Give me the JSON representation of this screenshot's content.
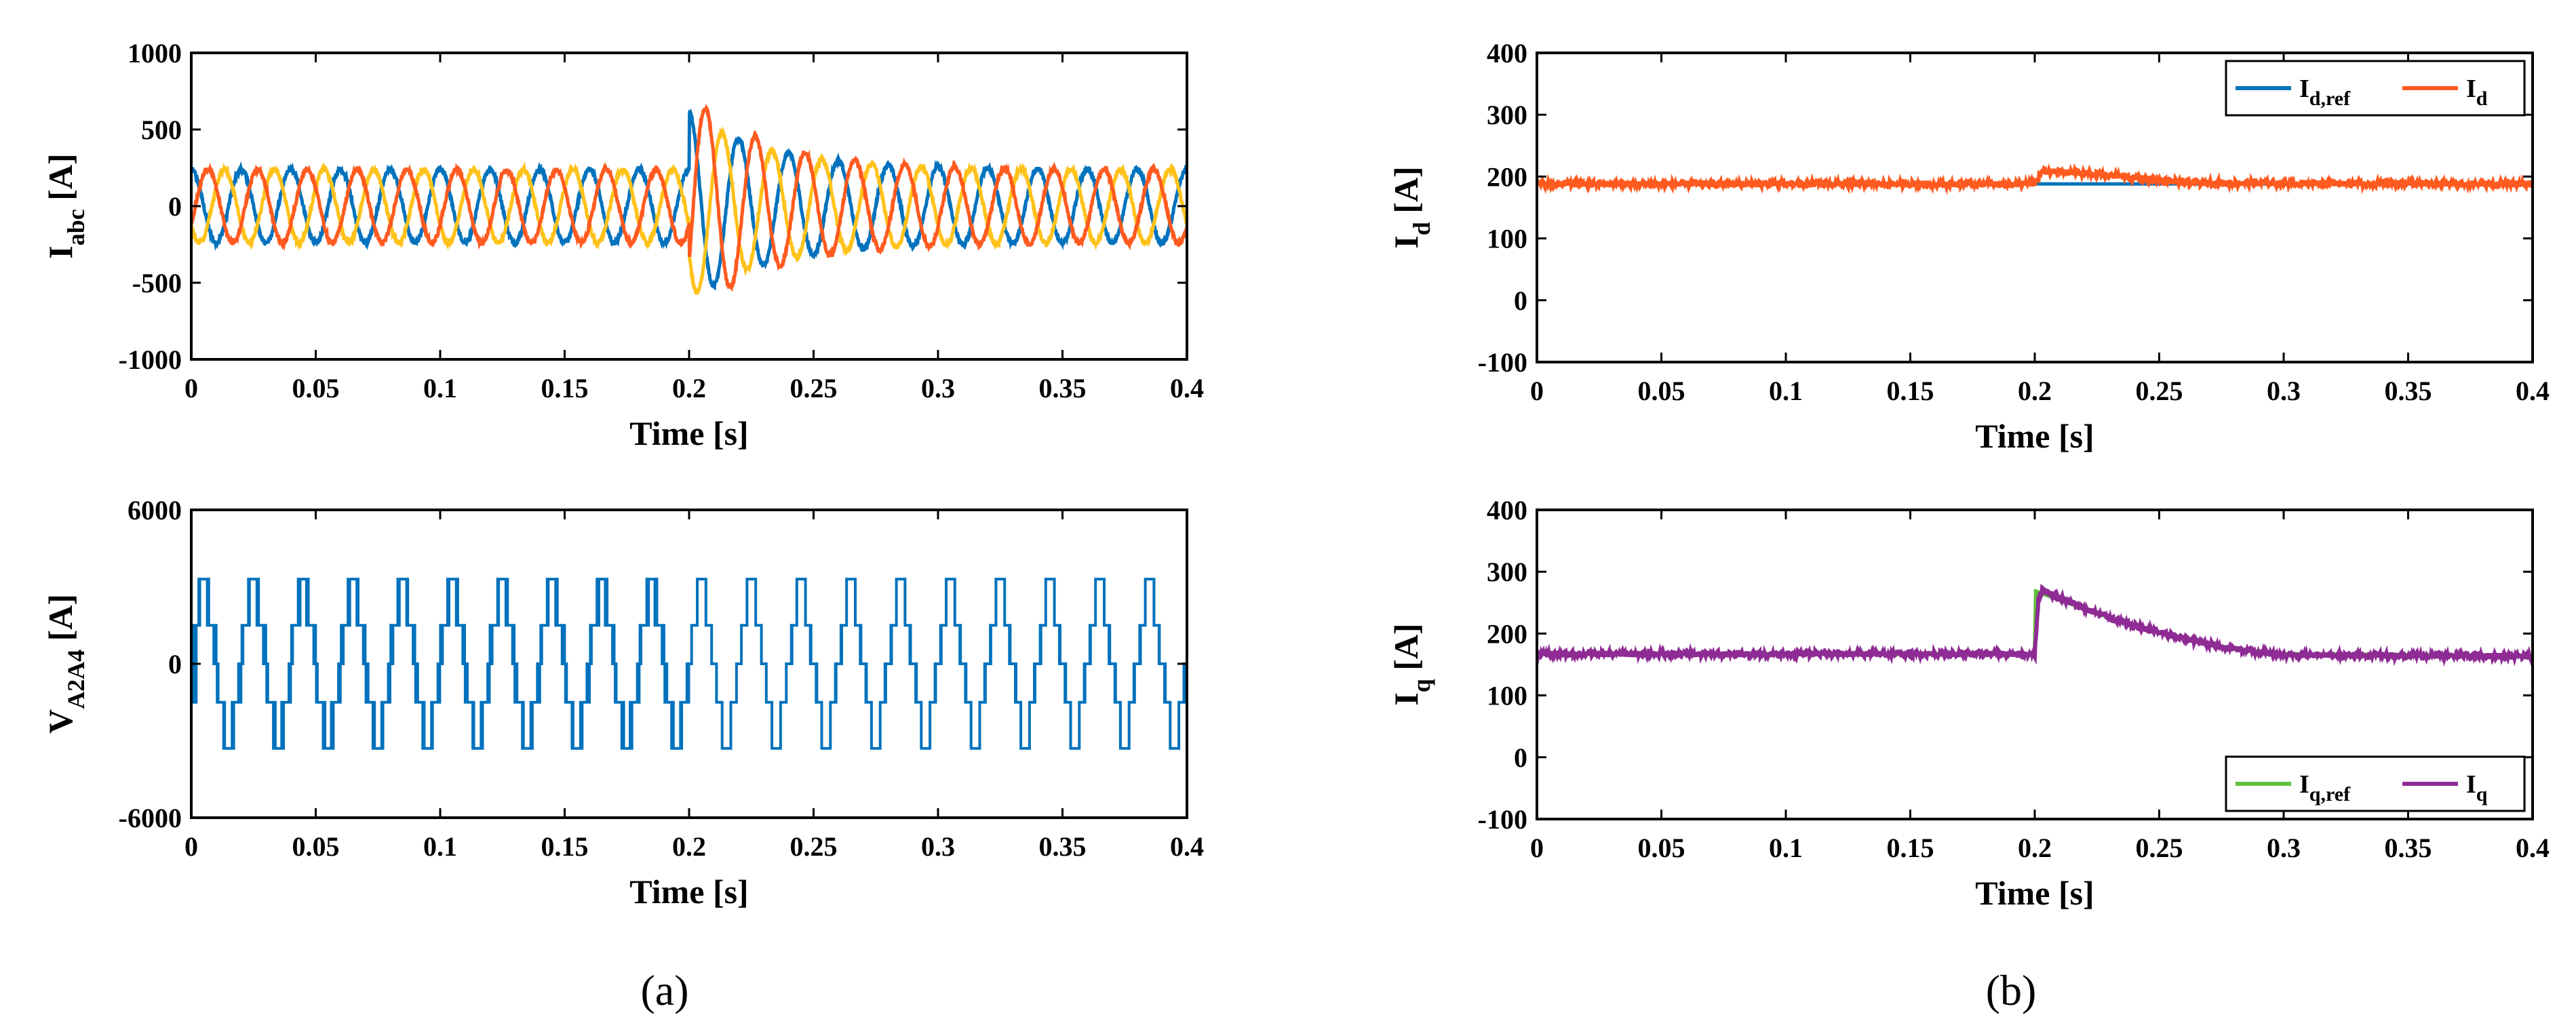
{
  "colors": {
    "blue": "#0072BD",
    "orange": "#FF5A1F",
    "yellow": "#FFC21A",
    "green": "#5EC23B",
    "purple": "#8E2B94"
  },
  "captions": {
    "a": "(a)",
    "b": "(b)"
  },
  "chart_data": [
    {
      "id": "iabc",
      "type": "line",
      "xlabel": "Time [s]",
      "ylabel": {
        "main": "I",
        "sub": "abc",
        "unit": " [A]"
      },
      "xlim": [
        0,
        0.4
      ],
      "ylim": [
        -1000,
        1000
      ],
      "xticks": [
        "0",
        "0.05",
        "0.1",
        "0.15",
        "0.2",
        "0.25",
        "0.3",
        "0.35",
        "0.4"
      ],
      "yticks": [
        "1000",
        "500",
        "0",
        "-500",
        "-1000"
      ],
      "grid": false,
      "description_of_series": "three-phase sinusoidal currents, f = 50 Hz",
      "series": [
        {
          "phase": "a",
          "color": "blue",
          "steady_amplitude": 240,
          "phase_deg": 0,
          "transient_peak": 620,
          "transient_at": 0.212
        },
        {
          "phase": "b",
          "color": "orange",
          "steady_amplitude": 240,
          "phase_deg": -120,
          "transient_peak": -730,
          "transient_at": 0.206
        },
        {
          "phase": "c",
          "color": "yellow",
          "steady_amplitude": 240,
          "phase_deg": 120,
          "transient_peak": -600,
          "transient_at": 0.221
        }
      ],
      "disturbance_time": 0.2,
      "decay_until": 0.27
    },
    {
      "id": "id",
      "type": "line",
      "xlabel": "Time [s]",
      "ylabel": {
        "main": "I",
        "sub": "d",
        "unit": " [A]"
      },
      "xlim": [
        0,
        0.4
      ],
      "ylim": [
        -100,
        400
      ],
      "xticks": [
        "0",
        "0.05",
        "0.1",
        "0.15",
        "0.2",
        "0.25",
        "0.3",
        "0.35",
        "0.4"
      ],
      "yticks": [
        "400",
        "300",
        "200",
        "100",
        "0",
        "-100"
      ],
      "grid": false,
      "legend_placement": "top-right",
      "series": [
        {
          "name": "I",
          "name_sub": "d,ref",
          "color": "blue",
          "points": [
            [
              0,
              188
            ],
            [
              0.4,
              188
            ]
          ]
        },
        {
          "name": "I",
          "name_sub": "d",
          "color": "orange",
          "points": [
            [
              0,
              188
            ],
            [
              0.2,
              188
            ],
            [
              0.203,
              208
            ],
            [
              0.22,
              206
            ],
            [
              0.24,
              198
            ],
            [
              0.26,
              190
            ],
            [
              0.4,
              188
            ]
          ]
        }
      ]
    },
    {
      "id": "va2a4",
      "type": "line",
      "xlabel": "Time [s]",
      "ylabel": {
        "main": "V",
        "sub": "A2A4",
        "unit": " [A]"
      },
      "xlim": [
        0,
        0.4
      ],
      "ylim": [
        -6000,
        6000
      ],
      "xticks": [
        "0",
        "0.05",
        "0.1",
        "0.15",
        "0.2",
        "0.25",
        "0.3",
        "0.35",
        "0.4"
      ],
      "yticks": [
        "6000",
        "0",
        "-6000"
      ],
      "grid": false,
      "description_of_series": "multilevel PWM voltage, levels ±1500 and ±3300",
      "levels": [
        -3300,
        -1500,
        0,
        1500,
        3300
      ],
      "series": [
        {
          "color": "blue"
        }
      ]
    },
    {
      "id": "iq",
      "type": "line",
      "xlabel": "Time [s]",
      "ylabel": {
        "main": "I",
        "sub": "q",
        "unit": "  [A]"
      },
      "xlim": [
        0,
        0.4
      ],
      "ylim": [
        -100,
        400
      ],
      "xticks": [
        "0",
        "0.05",
        "0.1",
        "0.15",
        "0.2",
        "0.25",
        "0.3",
        "0.35",
        "0.4"
      ],
      "yticks": [
        "400",
        "300",
        "200",
        "100",
        "0",
        "-100"
      ],
      "grid": false,
      "legend_placement": "bottom-right",
      "series": [
        {
          "name": "I",
          "name_sub": "q,ref",
          "color": "green",
          "points": [
            [
              0,
              167
            ],
            [
              0.2,
              167
            ],
            [
              0.2005,
              268
            ],
            [
              0.205,
              262
            ],
            [
              0.22,
              240
            ],
            [
              0.24,
              212
            ],
            [
              0.26,
              192
            ],
            [
              0.28,
              175
            ],
            [
              0.3,
              167
            ],
            [
              0.4,
              164
            ]
          ]
        },
        {
          "name": "I",
          "name_sub": "q",
          "color": "purple",
          "points": [
            [
              0,
              167
            ],
            [
              0.2,
              167
            ],
            [
              0.2015,
              258
            ],
            [
              0.203,
              270
            ],
            [
              0.21,
              258
            ],
            [
              0.22,
              240
            ],
            [
              0.24,
              212
            ],
            [
              0.26,
              192
            ],
            [
              0.28,
              175
            ],
            [
              0.3,
              166
            ],
            [
              0.4,
              163
            ]
          ]
        }
      ]
    }
  ]
}
